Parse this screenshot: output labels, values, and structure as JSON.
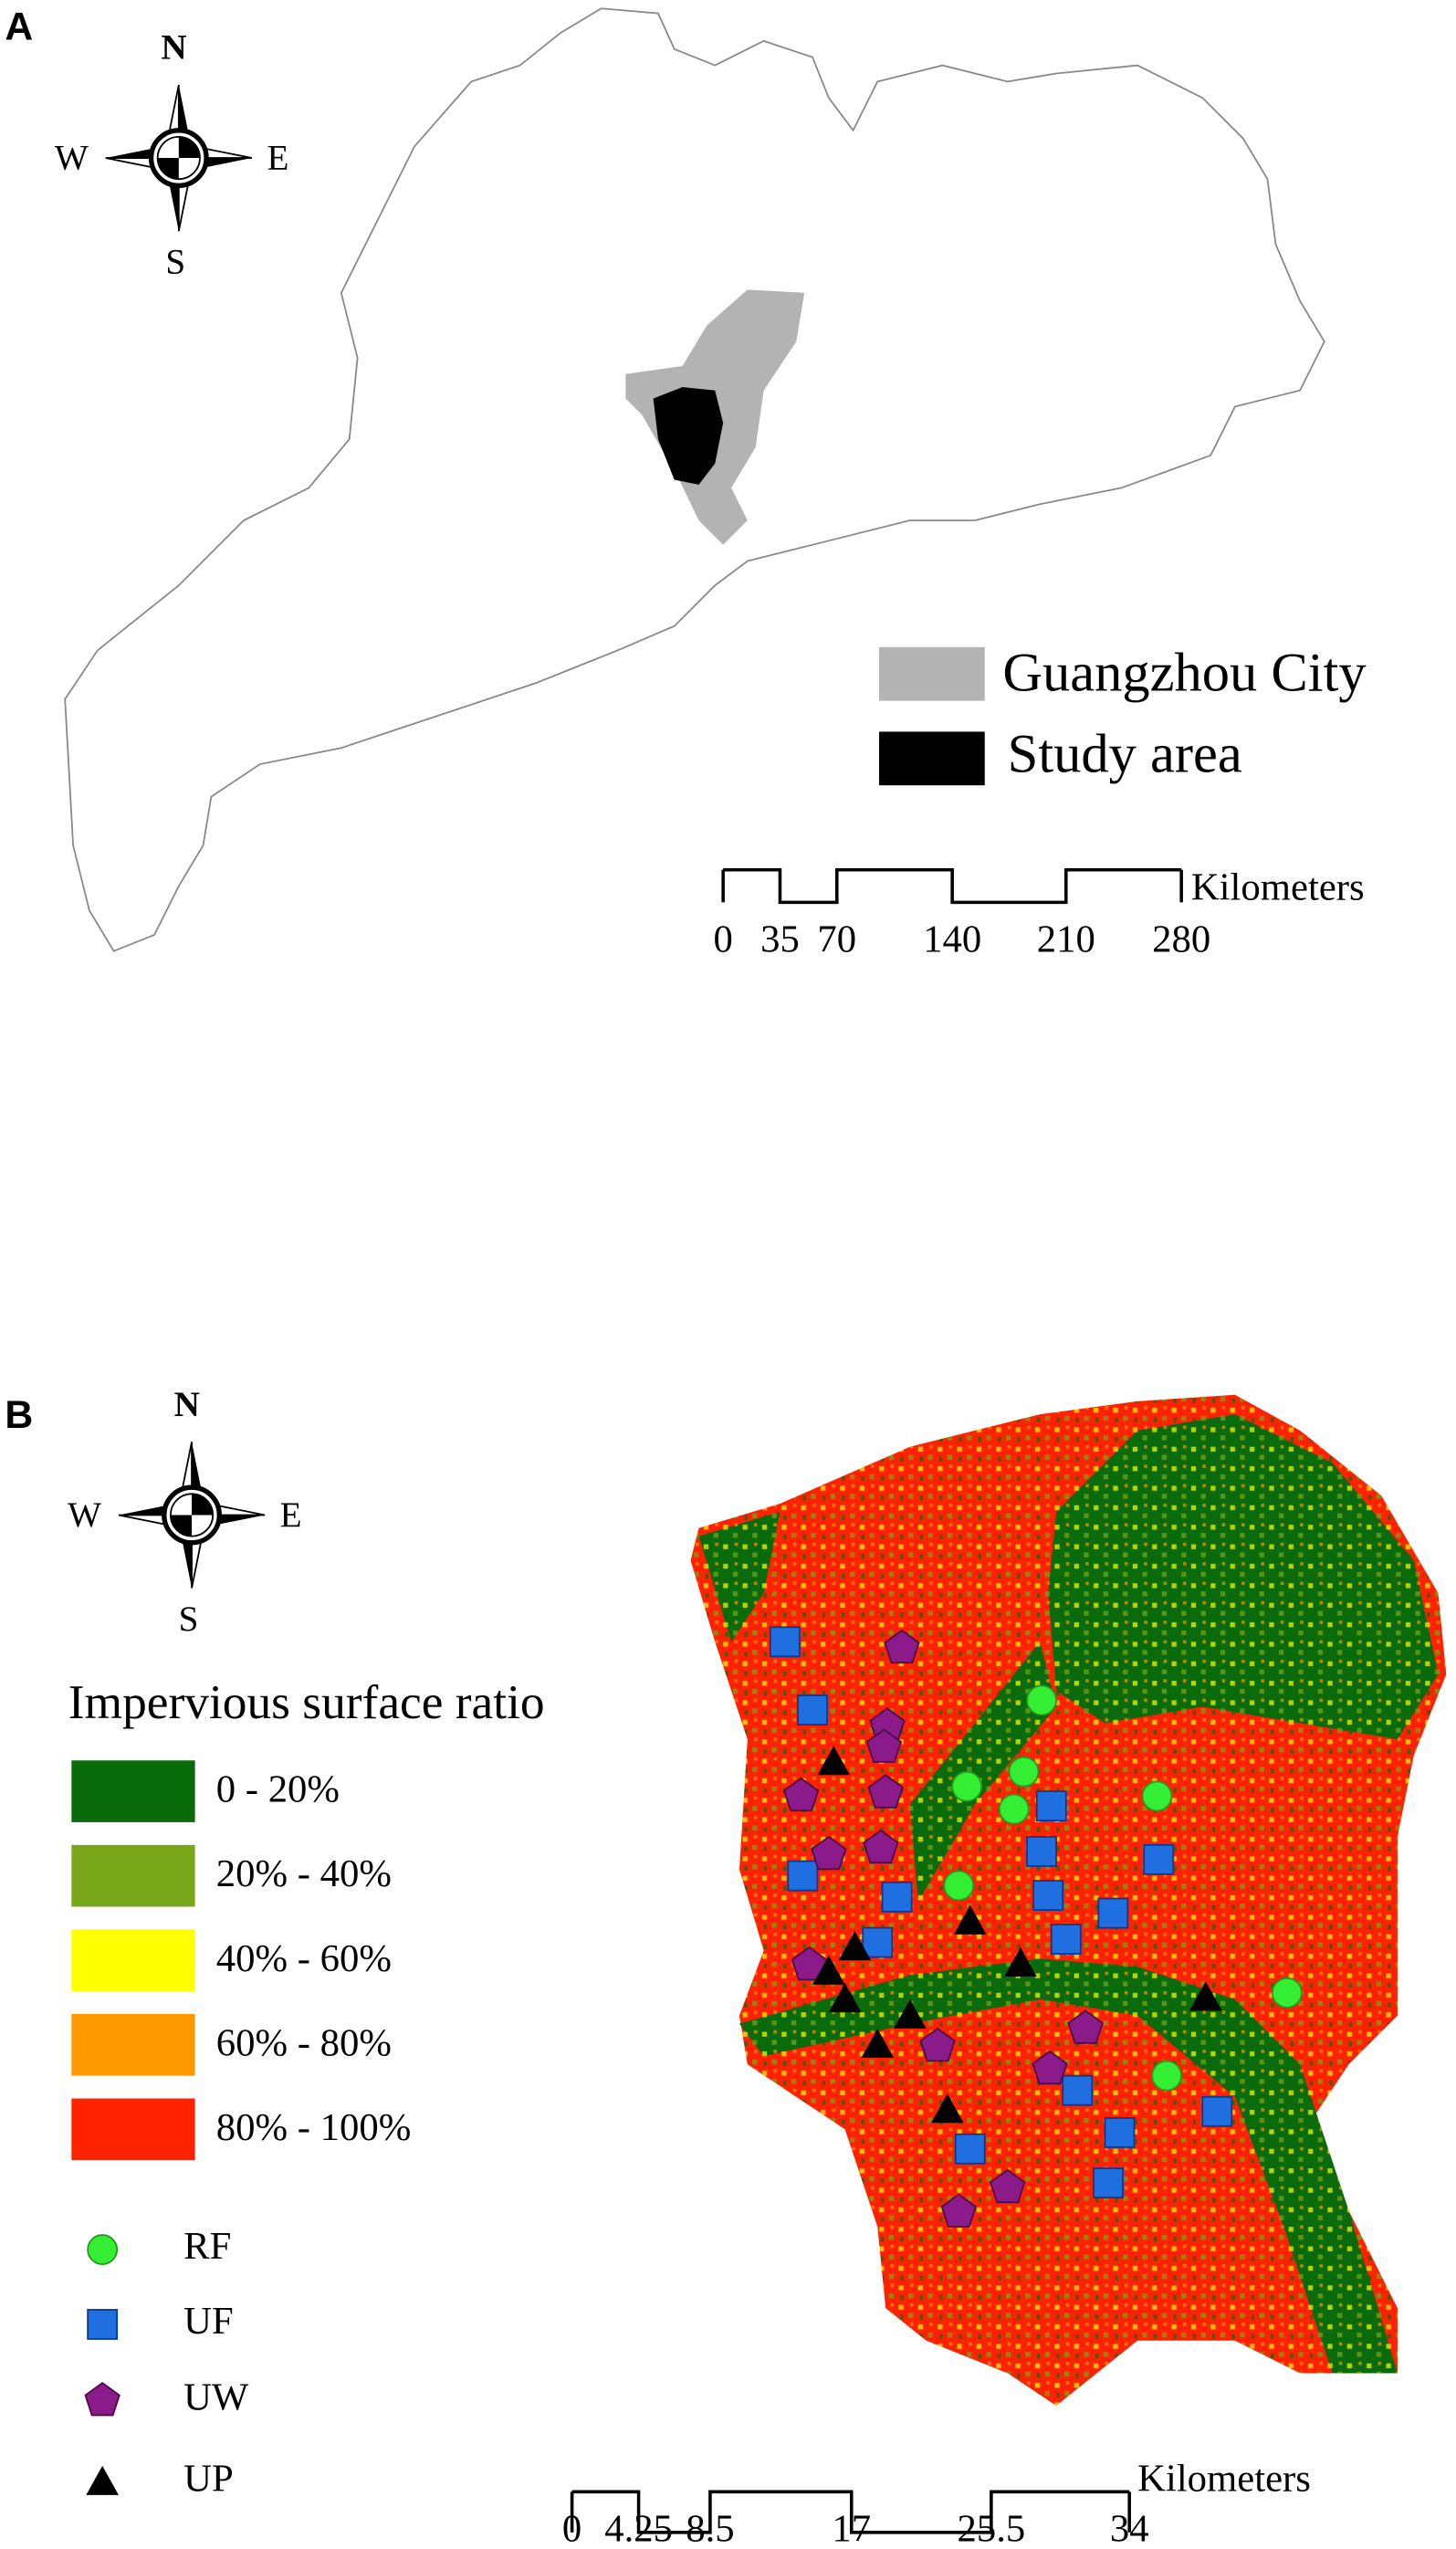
{
  "panel_a": {
    "label": "A",
    "compass": {
      "n": "N",
      "s": "S",
      "w": "W",
      "e": "E"
    },
    "legend": [
      "Guangzhou City",
      "Study area"
    ],
    "scale_bar": {
      "ticks": [
        "0",
        "35",
        "70",
        "140",
        "210",
        "280"
      ],
      "unit": "Kilometers"
    }
  },
  "panel_b": {
    "label": "B",
    "compass": {
      "n": "N",
      "s": "S",
      "w": "W",
      "e": "E"
    },
    "legend_title": "Impervious surface ratio",
    "legend": [
      "0 - 20%",
      "20% - 40%",
      "40% - 60%",
      "60% - 80%",
      "80% - 100%"
    ],
    "sample_legend": [
      "RF",
      "UF",
      "UW",
      "UP"
    ],
    "scale_bar": {
      "ticks": [
        "0",
        "4.25",
        "8.5",
        "17",
        "25.5",
        "34"
      ],
      "unit": "Kilometers"
    }
  }
}
